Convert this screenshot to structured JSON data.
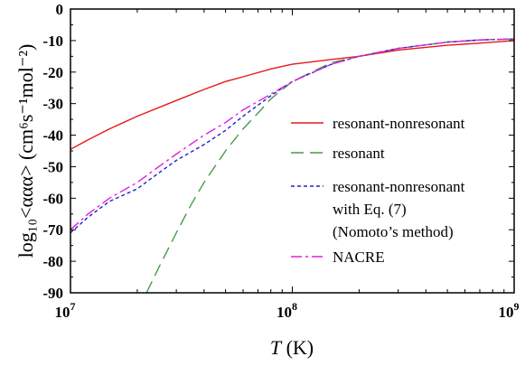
{
  "chart_data": {
    "type": "line",
    "xscale": "log",
    "xlim": [
      10000000,
      1000000000
    ],
    "ylim": [
      -90,
      0
    ],
    "x_ticks": [
      {
        "value": 10000000,
        "base": "10",
        "exp": "7"
      },
      {
        "value": 100000000,
        "base": "10",
        "exp": "8"
      },
      {
        "value": 1000000000,
        "base": "10",
        "exp": "9"
      }
    ],
    "y_ticks": [
      "0",
      "-10",
      "-20",
      "-30",
      "-40",
      "-50",
      "-60",
      "-70",
      "-80",
      "-90"
    ],
    "xlabel": {
      "italic": "T",
      "rest": " (K)"
    },
    "ylabel": "log₁₀<ααα> (cm⁶s⁻¹mol⁻²)",
    "grid": false,
    "legend_position": "right",
    "series": [
      {
        "name": "resonant-nonresonant",
        "color": "#e41a1c",
        "dash": "",
        "x": [
          10000000,
          12000000,
          15000000,
          20000000,
          30000000,
          40000000,
          50000000,
          60000000,
          80000000,
          100000000,
          150000000,
          200000000,
          300000000,
          500000000,
          700000000,
          1000000000
        ],
        "y": [
          -44.5,
          -41.5,
          -38.0,
          -34.0,
          -29.0,
          -25.5,
          -23.0,
          -21.5,
          -19.0,
          -17.5,
          -16.0,
          -15.0,
          -13.0,
          -11.5,
          -10.8,
          -10.0
        ]
      },
      {
        "name": "resonant",
        "color": "#4a9a4a",
        "dash": "14,7",
        "x": [
          22000000,
          25000000,
          30000000,
          35000000,
          40000000,
          50000000,
          60000000,
          70000000,
          80000000,
          100000000,
          150000000,
          200000000,
          300000000,
          500000000,
          700000000,
          1000000000
        ],
        "y": [
          -90,
          -82.0,
          -71.0,
          -62.0,
          -55.0,
          -45.0,
          -38.0,
          -33.0,
          -28.5,
          -23.0,
          -17.0,
          -15.0,
          -12.5,
          -10.5,
          -9.8,
          -9.5
        ]
      },
      {
        "name": "resonant-nonresonant",
        "name_line2": "with Eq. (7)",
        "name_line3": "(Nomoto’s method)",
        "color": "#2222cc",
        "dash": "4,3",
        "x": [
          10000000,
          12000000,
          15000000,
          20000000,
          25000000,
          30000000,
          40000000,
          50000000,
          60000000,
          80000000,
          100000000,
          150000000,
          200000000,
          300000000,
          500000000,
          700000000,
          1000000000
        ],
        "y": [
          -71.0,
          -66.0,
          -61.0,
          -57.0,
          -52.0,
          -48.0,
          -43.0,
          -38.5,
          -34.0,
          -27.5,
          -23.0,
          -17.5,
          -15.0,
          -12.5,
          -10.5,
          -9.8,
          -9.5
        ]
      },
      {
        "name": "NACRE",
        "color": "#e01ee0",
        "dash": "12,4,3,4",
        "x": [
          10000000,
          12000000,
          15000000,
          20000000,
          25000000,
          30000000,
          40000000,
          50000000,
          60000000,
          80000000,
          100000000,
          150000000,
          200000000,
          300000000,
          500000000,
          700000000,
          1000000000
        ],
        "y": [
          -70.0,
          -65.0,
          -60.0,
          -55.0,
          -50.0,
          -46.0,
          -40.0,
          -36.0,
          -32.0,
          -27.0,
          -23.0,
          -17.5,
          -15.0,
          -12.5,
          -10.5,
          -9.8,
          -9.5
        ]
      }
    ]
  }
}
